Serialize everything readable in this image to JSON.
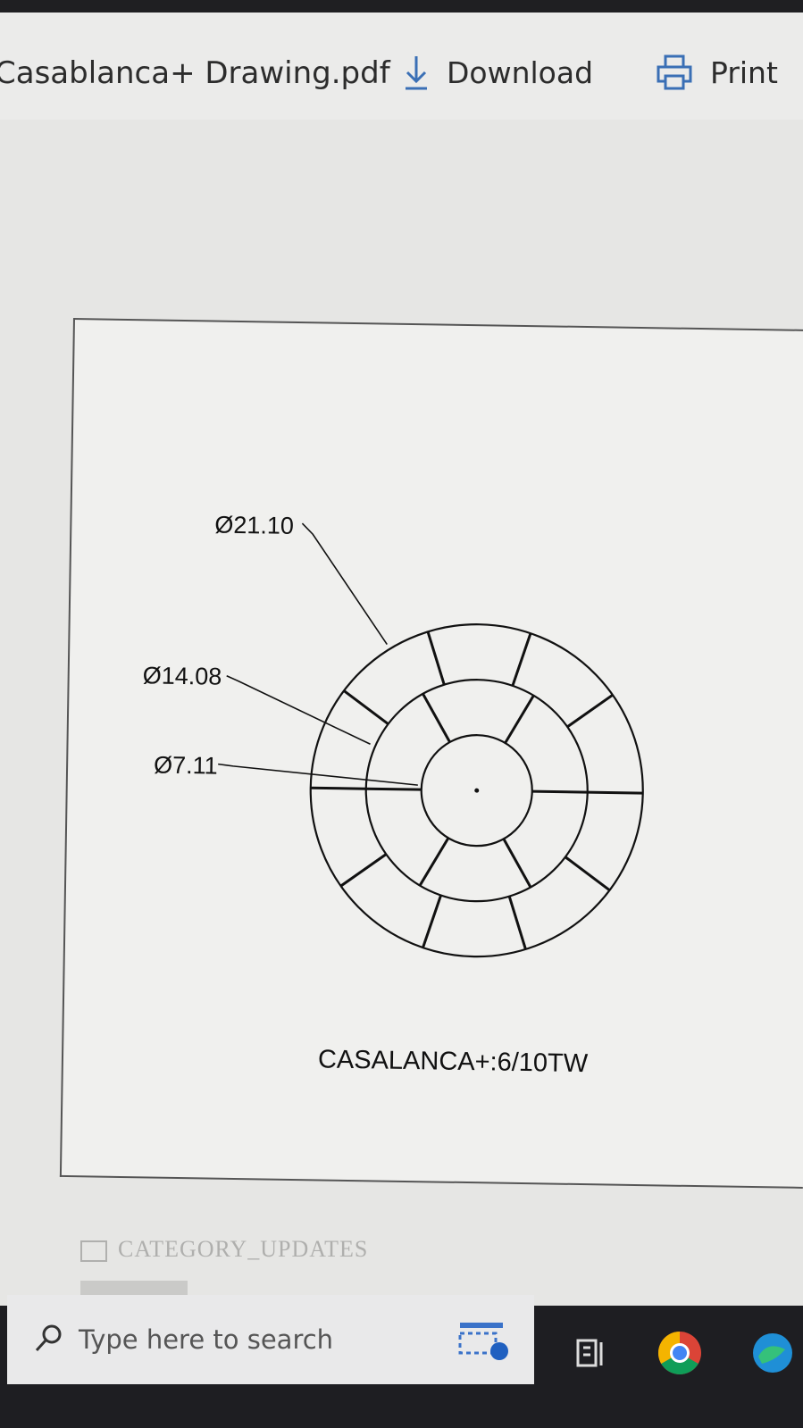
{
  "viewer": {
    "file_name": "Casablanca+ Drawing.pdf",
    "download_label": "Download",
    "print_label": "Print"
  },
  "drawing": {
    "dimensions": [
      {
        "label": "Ø21.10"
      },
      {
        "label": "Ø14.08"
      },
      {
        "label": "Ø7.11"
      }
    ],
    "caption": "CASALANCA+:6/10TW"
  },
  "background_window": {
    "faded_text": "CATEGORY_UPDATES"
  },
  "taskbar": {
    "search_placeholder": "Type here to search",
    "icons": [
      "task-view-icon",
      "app-icon",
      "chrome-icon",
      "edge-icon"
    ]
  },
  "colors": {
    "screen_bg": "#e6e6e4",
    "taskbar_bg": "#1e1e22",
    "line": "#111111"
  }
}
